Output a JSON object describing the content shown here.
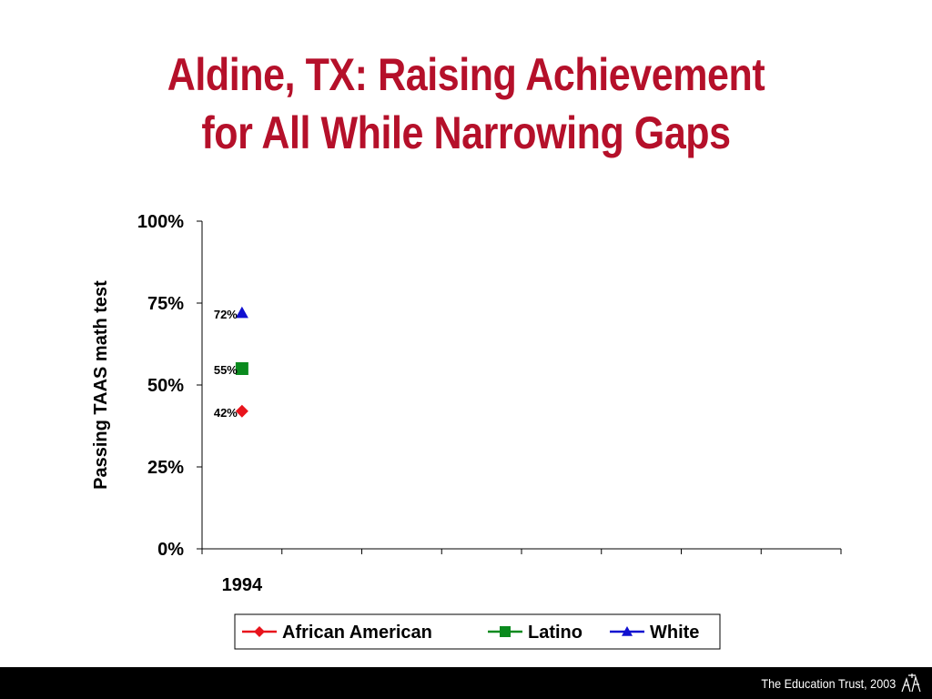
{
  "slide": {
    "title_line1": "Aldine, TX:  Raising Achievement",
    "title_line2": "for All While Narrowing Gaps",
    "footer": "The Education Trust, 2003"
  },
  "colors": {
    "title": "#b5102a",
    "african_american": "#e8141c",
    "latino": "#0a8a1e",
    "white": "#1010d0",
    "footer_bar": "#000000"
  },
  "chart_data": {
    "type": "line",
    "title": "",
    "xlabel": "",
    "ylabel": "Passing TAAS math test",
    "categories": [
      "1994",
      "",
      "",
      "",
      "",
      "",
      "",
      ""
    ],
    "ylim": [
      0,
      100
    ],
    "yticks": [
      {
        "value": 0,
        "label": "0%"
      },
      {
        "value": 25,
        "label": "25%"
      },
      {
        "value": 50,
        "label": "50%"
      },
      {
        "value": 75,
        "label": "75%"
      },
      {
        "value": 100,
        "label": "100%"
      }
    ],
    "grid": false,
    "legend_position": "bottom",
    "series": [
      {
        "name": "African American",
        "marker": "diamond",
        "color": "#e8141c",
        "values": [
          42,
          null,
          null,
          null,
          null,
          null,
          null,
          null
        ],
        "labels": [
          "42%"
        ]
      },
      {
        "name": "Latino",
        "marker": "square",
        "color": "#0a8a1e",
        "values": [
          55,
          null,
          null,
          null,
          null,
          null,
          null,
          null
        ],
        "labels": [
          "55%"
        ]
      },
      {
        "name": "White",
        "marker": "triangle",
        "color": "#1010d0",
        "values": [
          72,
          null,
          null,
          null,
          null,
          null,
          null,
          null
        ],
        "labels": [
          "72%"
        ]
      }
    ]
  }
}
